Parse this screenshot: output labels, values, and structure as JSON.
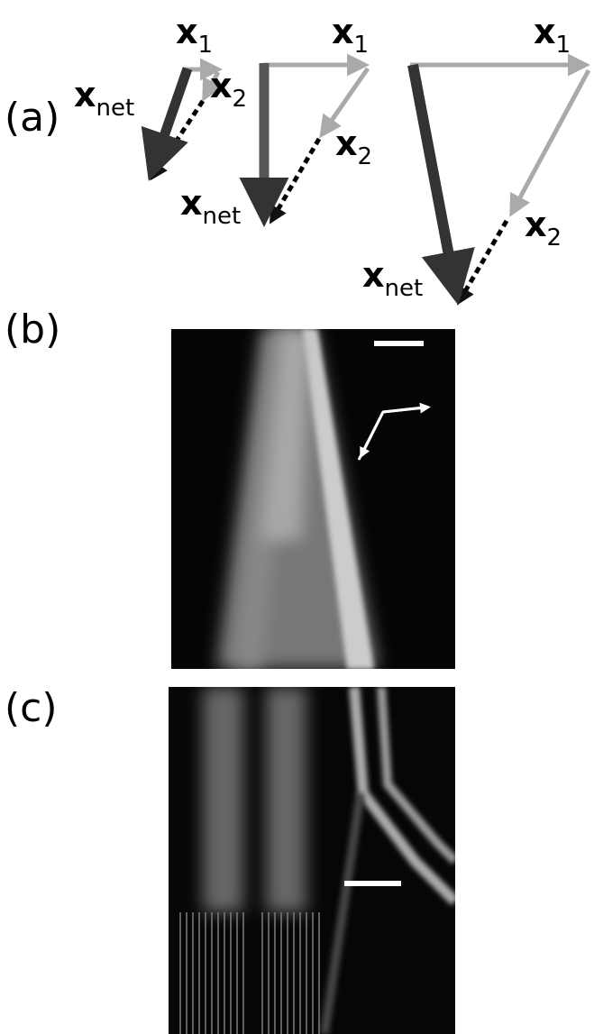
{
  "panels": [
    {
      "label": "(a)",
      "diagrams": [
        {
          "x1": {
            "symbol": "x",
            "subscript": "1"
          },
          "x2": {
            "symbol": "x",
            "subscript": "2"
          },
          "xnet": {
            "symbol": "x",
            "subscript": "net"
          }
        },
        {
          "x1": {
            "symbol": "x",
            "subscript": "1"
          },
          "x2": {
            "symbol": "x",
            "subscript": "2"
          },
          "xnet": {
            "symbol": "x",
            "subscript": "net"
          }
        },
        {
          "x1": {
            "symbol": "x",
            "subscript": "1"
          },
          "x2": {
            "symbol": "x",
            "subscript": "2"
          },
          "xnet": {
            "symbol": "x",
            "subscript": "net"
          }
        }
      ]
    },
    {
      "label": "(b)"
    },
    {
      "label": "(c)"
    }
  ]
}
